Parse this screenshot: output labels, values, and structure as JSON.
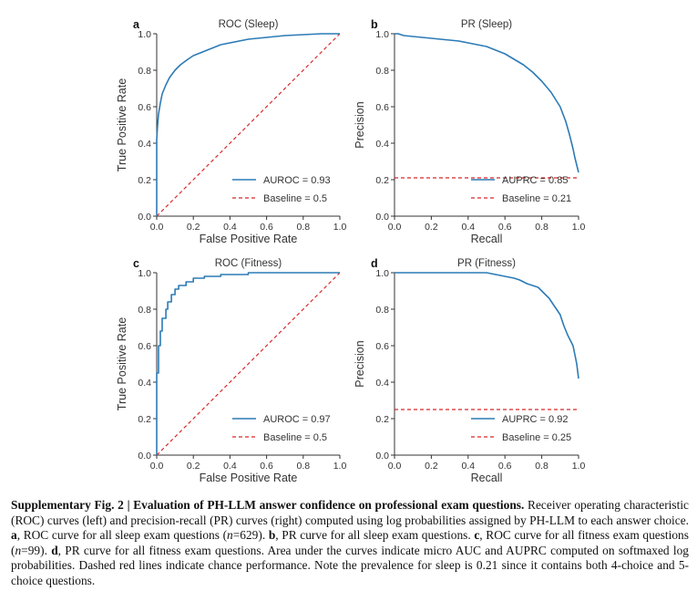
{
  "caption": {
    "label": "Supplementary Fig. 2",
    "separator": " | ",
    "title": "Evaluation of PH-LLM answer confidence on professional exam questions.",
    "body_1": " Receiver operating characteristic (ROC) curves (left) and precision-recall (PR) curves (right) computed using log probabilities assigned by PH-LLM to each answer choice. ",
    "a": "a",
    "body_a": ", ROC curve for all sleep exam questions (",
    "n_a": "n",
    "n_a_val": "=629). ",
    "b": "b",
    "body_b": ", PR curve for all sleep exam questions. ",
    "c": "c",
    "body_c": ", ROC curve for all fitness exam questions (",
    "n_c": "n",
    "n_c_val": "=99). ",
    "d": "d",
    "body_d": ", PR curve for all fitness exam questions. Area under the curves indicate micro AUC and AUPRC computed on softmaxed log probabilities. Dashed red lines indicate chance performance. Note the prevalence for sleep is 0.21 since it contains both 4-choice and 5-choice questions."
  },
  "colors": {
    "curve": "#2c7bb6",
    "baseline": "#d62728",
    "axis": "#333333"
  },
  "chart_data": [
    {
      "panel": "a",
      "type": "line",
      "title": "ROC (Sleep)",
      "xlabel": "False Positive Rate",
      "ylabel": "True Positive Rate",
      "xlim": [
        0,
        1
      ],
      "ylim": [
        0,
        1
      ],
      "xticks": [
        "0.0",
        "0.2",
        "0.4",
        "0.6",
        "0.8",
        "1.0"
      ],
      "yticks": [
        "0.0",
        "0.2",
        "0.4",
        "0.6",
        "0.8",
        "1.0"
      ],
      "legend_position": "lower-right",
      "grid": false,
      "series": [
        {
          "name": "AUROC = 0.93",
          "style": "solid",
          "x": [
            0,
            0,
            0.005,
            0.01,
            0.02,
            0.03,
            0.05,
            0.07,
            0.1,
            0.13,
            0.17,
            0.2,
            0.25,
            0.3,
            0.35,
            0.4,
            0.5,
            0.6,
            0.7,
            0.8,
            0.9,
            1.0
          ],
          "y": [
            0,
            0.42,
            0.5,
            0.56,
            0.62,
            0.67,
            0.72,
            0.76,
            0.8,
            0.83,
            0.86,
            0.88,
            0.9,
            0.92,
            0.94,
            0.95,
            0.97,
            0.98,
            0.99,
            0.995,
            1.0,
            1.0
          ]
        },
        {
          "name": "Baseline = 0.5",
          "style": "dashed",
          "x": [
            0,
            1
          ],
          "y": [
            0,
            1
          ]
        }
      ]
    },
    {
      "panel": "b",
      "type": "line",
      "title": "PR (Sleep)",
      "xlabel": "Recall",
      "ylabel": "Precision",
      "xlim": [
        0,
        1
      ],
      "ylim": [
        0,
        1
      ],
      "xticks": [
        "0.0",
        "0.2",
        "0.4",
        "0.6",
        "0.8",
        "1.0"
      ],
      "yticks": [
        "0.0",
        "0.2",
        "0.4",
        "0.6",
        "0.8",
        "1.0"
      ],
      "legend_position": "lower-right",
      "grid": false,
      "series": [
        {
          "name": "AUPRC = 0.85",
          "style": "solid",
          "x": [
            0,
            0.02,
            0.05,
            0.1,
            0.15,
            0.2,
            0.25,
            0.3,
            0.35,
            0.4,
            0.45,
            0.5,
            0.55,
            0.6,
            0.65,
            0.7,
            0.75,
            0.8,
            0.85,
            0.9,
            0.93,
            0.95,
            0.97,
            0.98,
            0.99,
            1.0
          ],
          "y": [
            1.0,
            1.0,
            0.99,
            0.985,
            0.98,
            0.975,
            0.97,
            0.965,
            0.96,
            0.95,
            0.94,
            0.93,
            0.91,
            0.89,
            0.86,
            0.83,
            0.79,
            0.74,
            0.68,
            0.6,
            0.52,
            0.45,
            0.37,
            0.32,
            0.28,
            0.24
          ]
        },
        {
          "name": "Baseline = 0.21",
          "style": "dashed",
          "x": [
            0,
            1
          ],
          "y": [
            0.21,
            0.21
          ]
        }
      ]
    },
    {
      "panel": "c",
      "type": "line",
      "title": "ROC (Fitness)",
      "xlabel": "False Positive Rate",
      "ylabel": "True Positive Rate",
      "xlim": [
        0,
        1
      ],
      "ylim": [
        0,
        1
      ],
      "xticks": [
        "0.0",
        "0.2",
        "0.4",
        "0.6",
        "0.8",
        "1.0"
      ],
      "yticks": [
        "0.0",
        "0.2",
        "0.4",
        "0.6",
        "0.8",
        "1.0"
      ],
      "legend_position": "lower-right",
      "grid": false,
      "series": [
        {
          "name": "AUROC = 0.97",
          "style": "solid",
          "x": [
            0,
            0,
            0.01,
            0.01,
            0.02,
            0.02,
            0.03,
            0.03,
            0.05,
            0.05,
            0.06,
            0.06,
            0.08,
            0.08,
            0.1,
            0.1,
            0.12,
            0.12,
            0.16,
            0.16,
            0.2,
            0.2,
            0.26,
            0.26,
            0.35,
            0.35,
            0.5,
            0.5,
            1.0
          ],
          "y": [
            0,
            0.45,
            0.45,
            0.6,
            0.6,
            0.68,
            0.68,
            0.75,
            0.75,
            0.8,
            0.8,
            0.84,
            0.84,
            0.88,
            0.88,
            0.91,
            0.91,
            0.93,
            0.93,
            0.95,
            0.95,
            0.97,
            0.97,
            0.98,
            0.98,
            0.99,
            0.99,
            1.0,
            1.0
          ]
        },
        {
          "name": "Baseline = 0.5",
          "style": "dashed",
          "x": [
            0,
            1
          ],
          "y": [
            0,
            1
          ]
        }
      ]
    },
    {
      "panel": "d",
      "type": "line",
      "title": "PR (Fitness)",
      "xlabel": "Recall",
      "ylabel": "Precision",
      "xlim": [
        0,
        1
      ],
      "ylim": [
        0,
        1
      ],
      "xticks": [
        "0.0",
        "0.2",
        "0.4",
        "0.6",
        "0.8",
        "1.0"
      ],
      "yticks": [
        "0.0",
        "0.2",
        "0.4",
        "0.6",
        "0.8",
        "1.0"
      ],
      "legend_position": "lower-right",
      "grid": false,
      "series": [
        {
          "name": "AUPRC = 0.92",
          "style": "solid",
          "x": [
            0,
            0.5,
            0.55,
            0.6,
            0.65,
            0.68,
            0.7,
            0.72,
            0.75,
            0.78,
            0.8,
            0.82,
            0.84,
            0.86,
            0.88,
            0.9,
            0.92,
            0.94,
            0.96,
            0.97,
            0.98,
            0.99,
            1.0
          ],
          "y": [
            1.0,
            1.0,
            0.99,
            0.98,
            0.97,
            0.96,
            0.95,
            0.94,
            0.93,
            0.92,
            0.9,
            0.88,
            0.86,
            0.83,
            0.8,
            0.77,
            0.71,
            0.66,
            0.62,
            0.6,
            0.55,
            0.5,
            0.42
          ]
        },
        {
          "name": "Baseline = 0.25",
          "style": "dashed",
          "x": [
            0,
            1
          ],
          "y": [
            0.25,
            0.25
          ]
        }
      ]
    }
  ]
}
